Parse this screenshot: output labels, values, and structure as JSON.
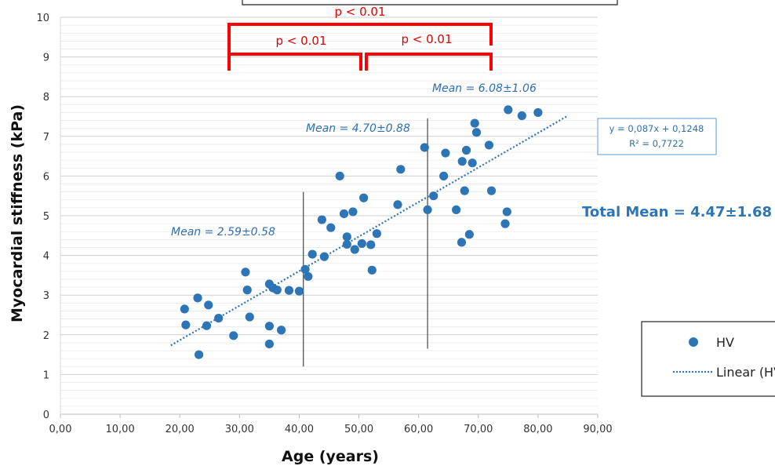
{
  "chart_data": {
    "type": "scatter",
    "xlabel": "Age (years)",
    "ylabel": "Myocardial stiffness (kPa)",
    "xlim": [
      0,
      90
    ],
    "ylim": [
      0,
      10
    ],
    "x_ticks": [
      "0,00",
      "10,00",
      "20,00",
      "30,00",
      "40,00",
      "50,00",
      "60,00",
      "70,00",
      "80,00",
      "90,00"
    ],
    "y_ticks": [
      "0",
      "1",
      "2",
      "3",
      "4",
      "5",
      "6",
      "7",
      "8",
      "9",
      "10"
    ],
    "grid": "horizontal minor gridlines",
    "series": [
      {
        "name": "HV",
        "color": "#2e75b6",
        "points": [
          [
            20.8,
            2.65
          ],
          [
            21.0,
            2.25
          ],
          [
            23.0,
            2.93
          ],
          [
            23.2,
            1.5
          ],
          [
            24.5,
            2.23
          ],
          [
            24.8,
            2.75
          ],
          [
            26.5,
            2.42
          ],
          [
            29.0,
            1.98
          ],
          [
            31.0,
            3.58
          ],
          [
            31.3,
            3.13
          ],
          [
            31.7,
            2.45
          ],
          [
            35.0,
            3.28
          ],
          [
            35.0,
            1.77
          ],
          [
            35.0,
            2.22
          ],
          [
            35.6,
            3.18
          ],
          [
            36.3,
            3.13
          ],
          [
            37.0,
            2.12
          ],
          [
            38.3,
            3.12
          ],
          [
            40.0,
            3.1
          ],
          [
            41.0,
            3.65
          ],
          [
            41.5,
            3.47
          ],
          [
            42.2,
            4.03
          ],
          [
            43.8,
            4.9
          ],
          [
            44.2,
            3.97
          ],
          [
            45.3,
            4.7
          ],
          [
            46.8,
            6.0
          ],
          [
            47.5,
            5.05
          ],
          [
            48.0,
            4.28
          ],
          [
            48.0,
            4.47
          ],
          [
            49.0,
            5.1
          ],
          [
            49.3,
            4.15
          ],
          [
            50.5,
            4.3
          ],
          [
            50.8,
            5.45
          ],
          [
            52.0,
            4.27
          ],
          [
            52.2,
            3.63
          ],
          [
            53.0,
            4.55
          ],
          [
            56.5,
            5.28
          ],
          [
            57.0,
            6.17
          ],
          [
            61.0,
            6.72
          ],
          [
            61.5,
            5.15
          ],
          [
            62.5,
            5.5
          ],
          [
            64.2,
            6.0
          ],
          [
            64.5,
            6.58
          ],
          [
            66.3,
            5.15
          ],
          [
            67.2,
            4.33
          ],
          [
            67.3,
            6.37
          ],
          [
            67.7,
            5.63
          ],
          [
            68.0,
            6.65
          ],
          [
            68.5,
            4.53
          ],
          [
            69.0,
            6.33
          ],
          [
            69.4,
            7.33
          ],
          [
            69.7,
            7.1
          ],
          [
            71.8,
            6.78
          ],
          [
            72.2,
            5.63
          ],
          [
            74.5,
            4.8
          ],
          [
            74.8,
            5.1
          ],
          [
            75.0,
            7.67
          ],
          [
            77.3,
            7.52
          ],
          [
            80.0,
            7.6
          ]
        ]
      }
    ],
    "trendline": {
      "name": "Linear (HV)",
      "slope": 0.087,
      "intercept": 0.1248,
      "x_range": [
        18.5,
        85
      ],
      "equation": "y = 0,087x + 0,1248",
      "r2": "R² = 0,7722"
    },
    "group_dividers": [
      {
        "x": 40.7,
        "y_range": [
          1.2,
          5.6
        ]
      },
      {
        "x": 61.5,
        "y_range": [
          1.65,
          7.45
        ]
      }
    ],
    "annotations": {
      "mean_young": "Mean = 2.59±0.58",
      "mean_middle": "Mean = 4.70±0.88",
      "mean_old": "Mean = 6.08±1.06",
      "total_mean": "Total Mean = 4.47±1.68",
      "p_left": "p < 0.01",
      "p_right": "p < 0.01",
      "p_top": "p < 0.01"
    },
    "legend": {
      "placement": "bottom-right",
      "marker_label": "HV",
      "line_label": "Linear (HV)"
    }
  }
}
